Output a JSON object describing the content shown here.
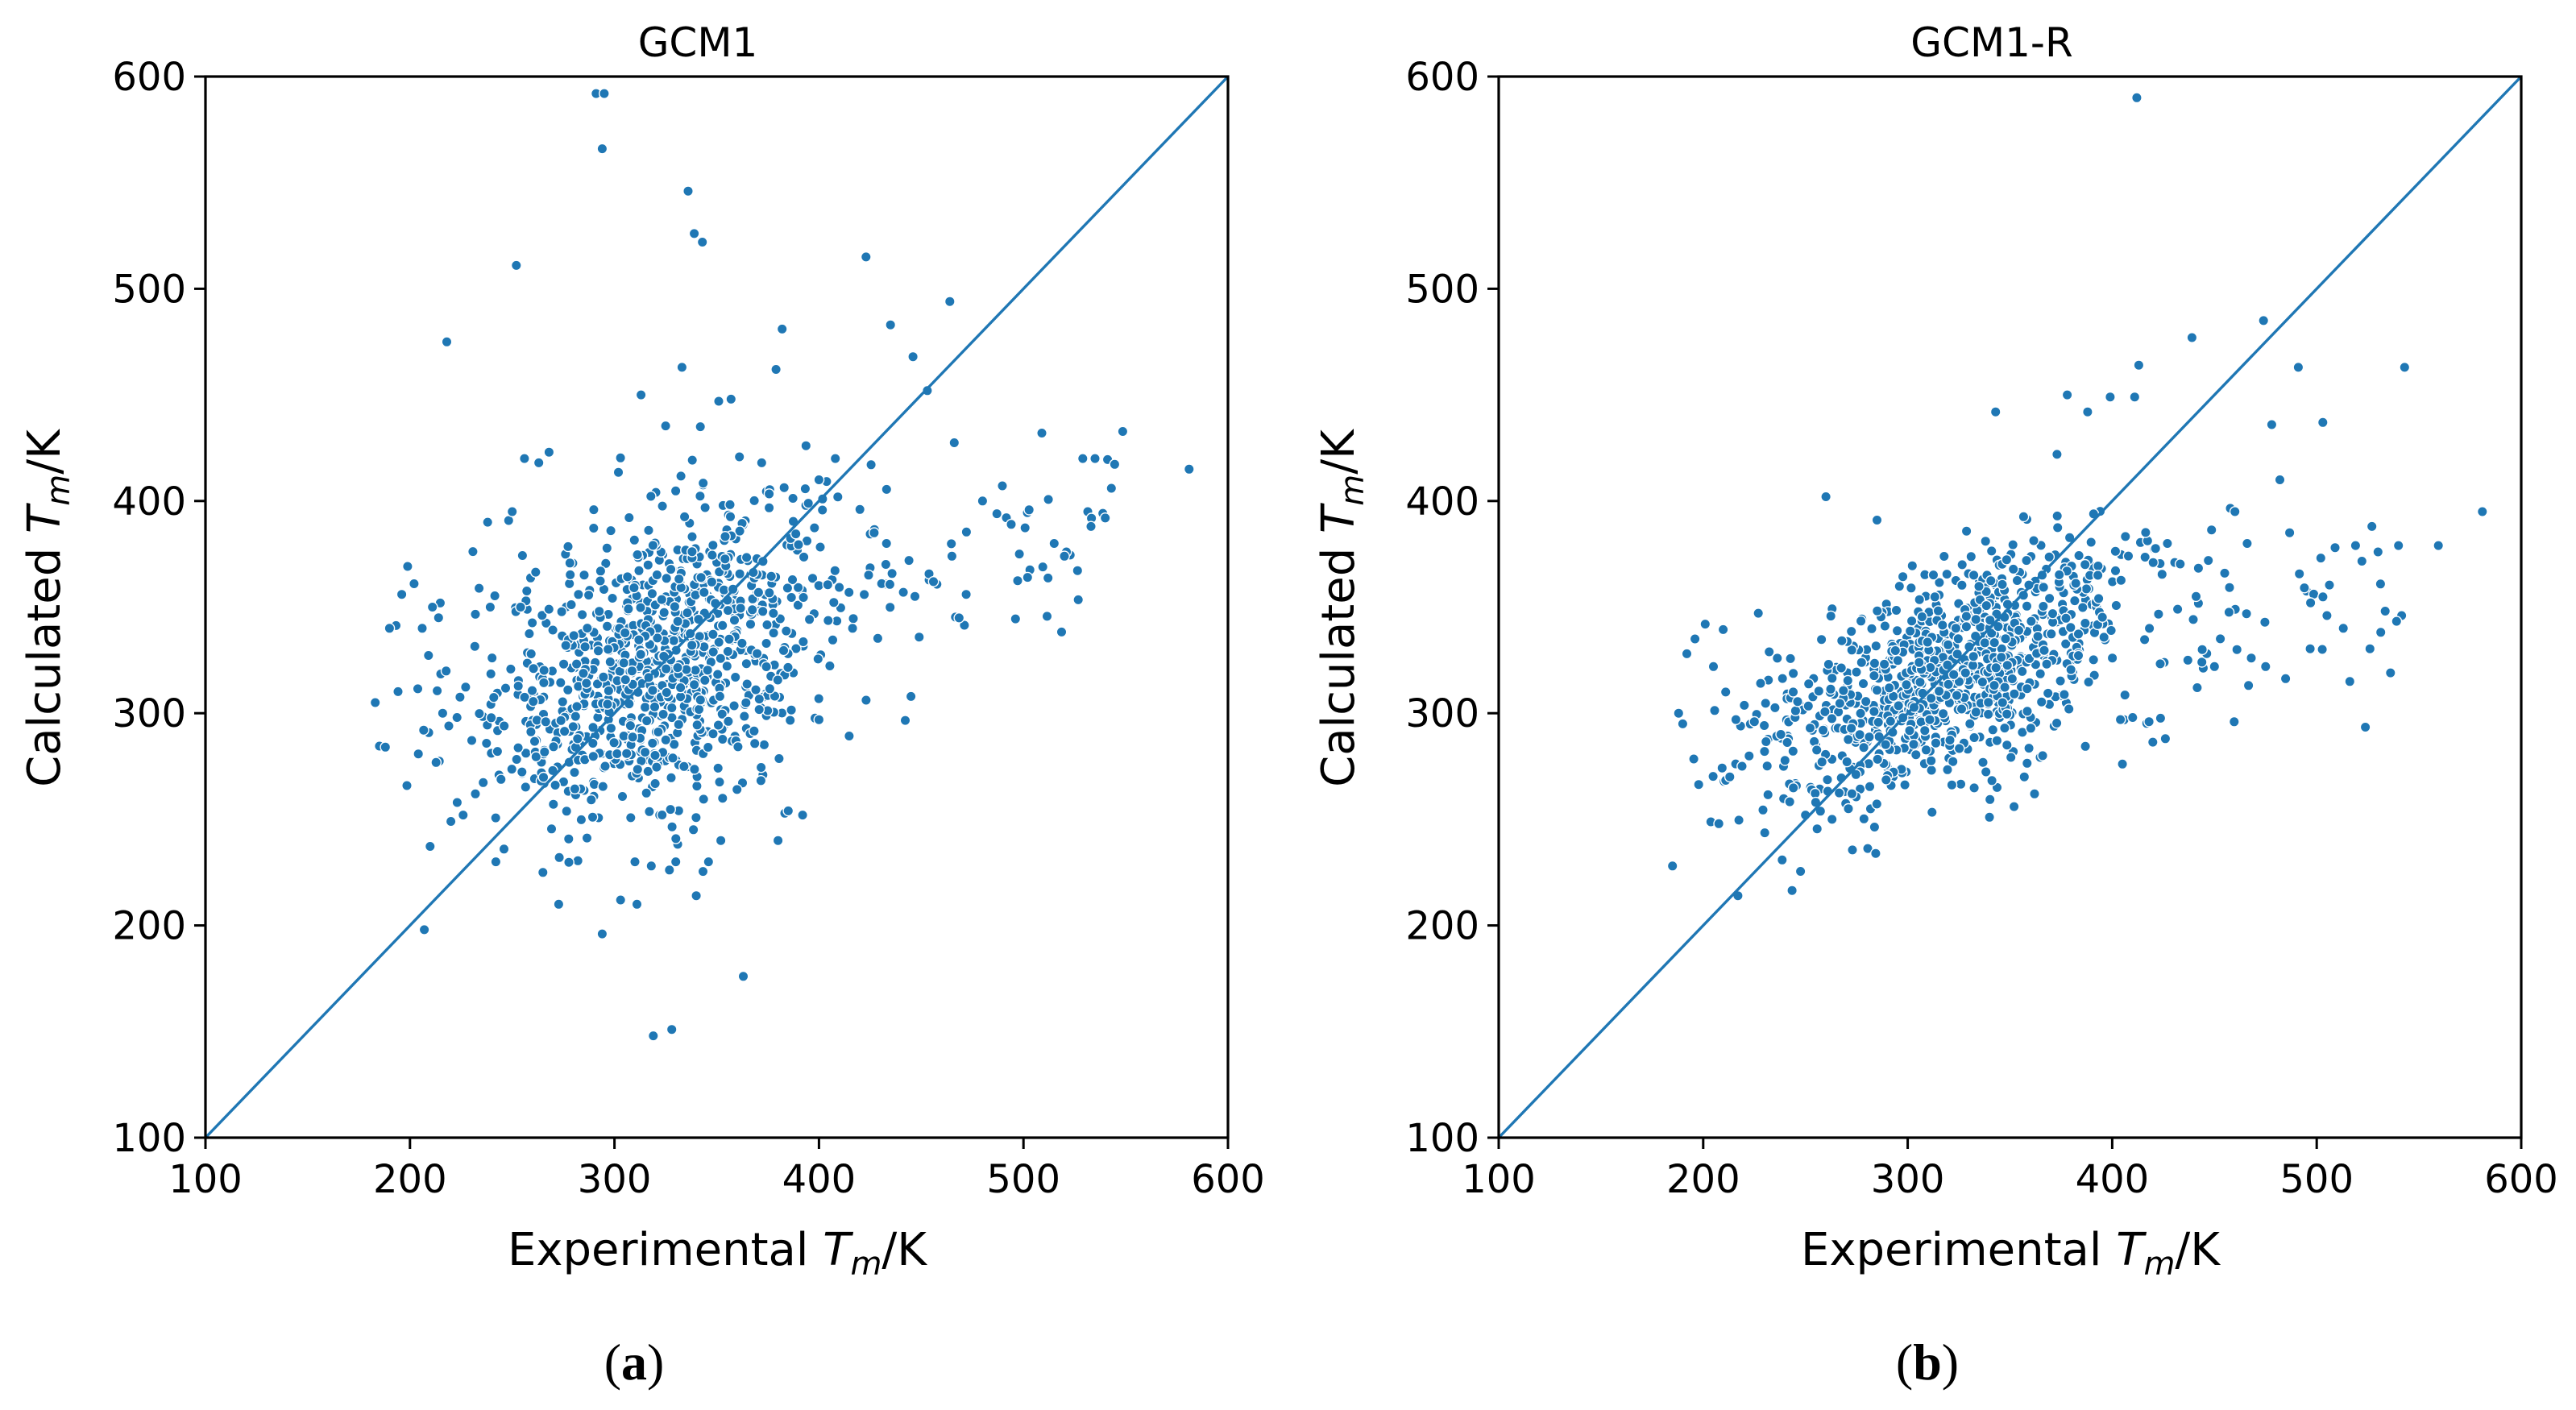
{
  "figure": {
    "panel_labels": [
      {
        "open": "(",
        "letter": "a",
        "close": ")"
      },
      {
        "open": "(",
        "letter": "b",
        "close": ")"
      }
    ]
  },
  "colors": {
    "points": "#1f77b4",
    "line": "#1f77b4",
    "axes": "#000000",
    "background": "#ffffff"
  },
  "chart_data": [
    {
      "type": "scatter",
      "title": "GCM1",
      "xlabel": {
        "prefix": "Experimental ",
        "symbol": "T",
        "subscript": "m",
        "suffix": "/K"
      },
      "ylabel": {
        "prefix": "Calculated ",
        "symbol": "T",
        "subscript": "m",
        "suffix": "/K"
      },
      "xlim": [
        100,
        600
      ],
      "ylim": [
        100,
        600
      ],
      "xticks": [
        "100",
        "200",
        "300",
        "400",
        "500",
        "600"
      ],
      "yticks": [
        "100",
        "200",
        "300",
        "400",
        "500",
        "600"
      ],
      "reference_line": {
        "from": [
          100,
          100
        ],
        "to": [
          600,
          600
        ]
      },
      "cloud": {
        "count": 880,
        "center": [
          325,
          325
        ],
        "sd": [
          40,
          38
        ],
        "correlation": 0.4,
        "slope_band": {
          "lo": [
            200,
            300
          ],
          "hi": [
            545,
            390
          ]
        },
        "band_count": 140
      },
      "points": [
        [
          291,
          592
        ],
        [
          295,
          592
        ],
        [
          294,
          566
        ],
        [
          336,
          546
        ],
        [
          339,
          526
        ],
        [
          343,
          522
        ],
        [
          252,
          511
        ],
        [
          423,
          515
        ],
        [
          464,
          494
        ],
        [
          435,
          483
        ],
        [
          446,
          468
        ],
        [
          218,
          475
        ],
        [
          453,
          452
        ],
        [
          207,
          198
        ],
        [
          294,
          196
        ],
        [
          319,
          148
        ],
        [
          328,
          151
        ],
        [
          363,
          176
        ],
        [
          581,
          415
        ],
        [
          543,
          406
        ],
        [
          529,
          420
        ],
        [
          535,
          420
        ],
        [
          509,
          432
        ],
        [
          521,
          376
        ],
        [
          540,
          392
        ],
        [
          533,
          388
        ],
        [
          183,
          305
        ],
        [
          188,
          284
        ],
        [
          190,
          340
        ],
        [
          196,
          356
        ],
        [
          202,
          361
        ],
        [
          206,
          340
        ],
        [
          211,
          350
        ],
        [
          214,
          345
        ],
        [
          219,
          294
        ],
        [
          216,
          300
        ],
        [
          223,
          298
        ],
        [
          220,
          249
        ],
        [
          226,
          252
        ],
        [
          232,
          262
        ],
        [
          242,
          230
        ],
        [
          238,
          390
        ],
        [
          250,
          395
        ],
        [
          256,
          420
        ],
        [
          263,
          418
        ],
        [
          268,
          423
        ],
        [
          333,
          463
        ],
        [
          313,
          450
        ],
        [
          351,
          447
        ],
        [
          357,
          448
        ],
        [
          342,
          435
        ],
        [
          379,
          462
        ],
        [
          382,
          481
        ],
        [
          372,
          418
        ],
        [
          400,
          410
        ],
        [
          408,
          420
        ],
        [
          420,
          396
        ],
        [
          427,
          385
        ],
        [
          433,
          380
        ],
        [
          444,
          372
        ],
        [
          456,
          362
        ],
        [
          465,
          374
        ],
        [
          472,
          356
        ],
        [
          480,
          400
        ],
        [
          487,
          394
        ],
        [
          494,
          389
        ],
        [
          498,
          375
        ],
        [
          502,
          364
        ],
        [
          515,
          380
        ],
        [
          520,
          374
        ],
        [
          310,
          230
        ],
        [
          318,
          228
        ],
        [
          330,
          230
        ],
        [
          340,
          214
        ],
        [
          346,
          230
        ],
        [
          352,
          240
        ],
        [
          380,
          240
        ],
        [
          385,
          254
        ],
        [
          392,
          252
        ],
        [
          303,
          212
        ],
        [
          311,
          210
        ],
        [
          265,
          225
        ],
        [
          273,
          232
        ],
        [
          246,
          236
        ]
      ]
    },
    {
      "type": "scatter",
      "title": "GCM1-R",
      "xlabel": {
        "prefix": "Experimental ",
        "symbol": "T",
        "subscript": "m",
        "suffix": "/K"
      },
      "ylabel": {
        "prefix": "Calculated ",
        "symbol": "T",
        "subscript": "m",
        "suffix": "/K"
      },
      "xlim": [
        100,
        600
      ],
      "ylim": [
        100,
        600
      ],
      "xticks": [
        "100",
        "200",
        "300",
        "400",
        "500",
        "600"
      ],
      "yticks": [
        "100",
        "200",
        "300",
        "400",
        "500",
        "600"
      ],
      "reference_line": {
        "from": [
          100,
          100
        ],
        "to": [
          600,
          600
        ]
      },
      "cloud": {
        "count": 880,
        "center": [
          320,
          318
        ],
        "sd": [
          42,
          30
        ],
        "correlation": 0.6,
        "slope_band": {
          "lo": [
            200,
            280
          ],
          "hi": [
            545,
            370
          ]
        },
        "band_count": 110
      },
      "points": [
        [
          412,
          590
        ],
        [
          474,
          485
        ],
        [
          439,
          477
        ],
        [
          491,
          463
        ],
        [
          543,
          463
        ],
        [
          503,
          437
        ],
        [
          478,
          436
        ],
        [
          413,
          464
        ],
        [
          378,
          450
        ],
        [
          399,
          449
        ],
        [
          411,
          449
        ],
        [
          388,
          442
        ],
        [
          343,
          442
        ],
        [
          373,
          422
        ],
        [
          260,
          402
        ],
        [
          285,
          391
        ],
        [
          581,
          395
        ],
        [
          527,
          388
        ],
        [
          519,
          379
        ],
        [
          509,
          378
        ],
        [
          540,
          379
        ],
        [
          530,
          376
        ],
        [
          497,
          352
        ],
        [
          505,
          346
        ],
        [
          513,
          340
        ],
        [
          482,
          410
        ],
        [
          460,
          395
        ],
        [
          466,
          380
        ],
        [
          447,
          372
        ],
        [
          455,
          366
        ],
        [
          185,
          228
        ],
        [
          217,
          214
        ],
        [
          192,
          328
        ],
        [
          196,
          335
        ],
        [
          201,
          342
        ],
        [
          205,
          322
        ],
        [
          211,
          310
        ],
        [
          188,
          300
        ],
        [
          190,
          295
        ],
        [
          216,
          297
        ],
        [
          213,
          270
        ],
        [
          219,
          275
        ],
        [
          230,
          282
        ],
        [
          225,
          296
        ],
        [
          238,
          290
        ],
        [
          244,
          310
        ],
        [
          250,
          252
        ],
        [
          255,
          258
        ],
        [
          263,
          250
        ],
        [
          271,
          255
        ],
        [
          340,
          251
        ],
        [
          352,
          256
        ],
        [
          357,
          270
        ],
        [
          362,
          262
        ],
        [
          366,
          280
        ],
        [
          404,
          297
        ],
        [
          410,
          298
        ],
        [
          418,
          296
        ],
        [
          426,
          288
        ],
        [
          437,
          325
        ],
        [
          444,
          330
        ],
        [
          450,
          322
        ],
        [
          461,
          330
        ],
        [
          468,
          326
        ],
        [
          475,
          322
        ],
        [
          432,
          349
        ],
        [
          441,
          355
        ],
        [
          420,
          371
        ],
        [
          427,
          380
        ],
        [
          393,
          365
        ]
      ]
    }
  ]
}
